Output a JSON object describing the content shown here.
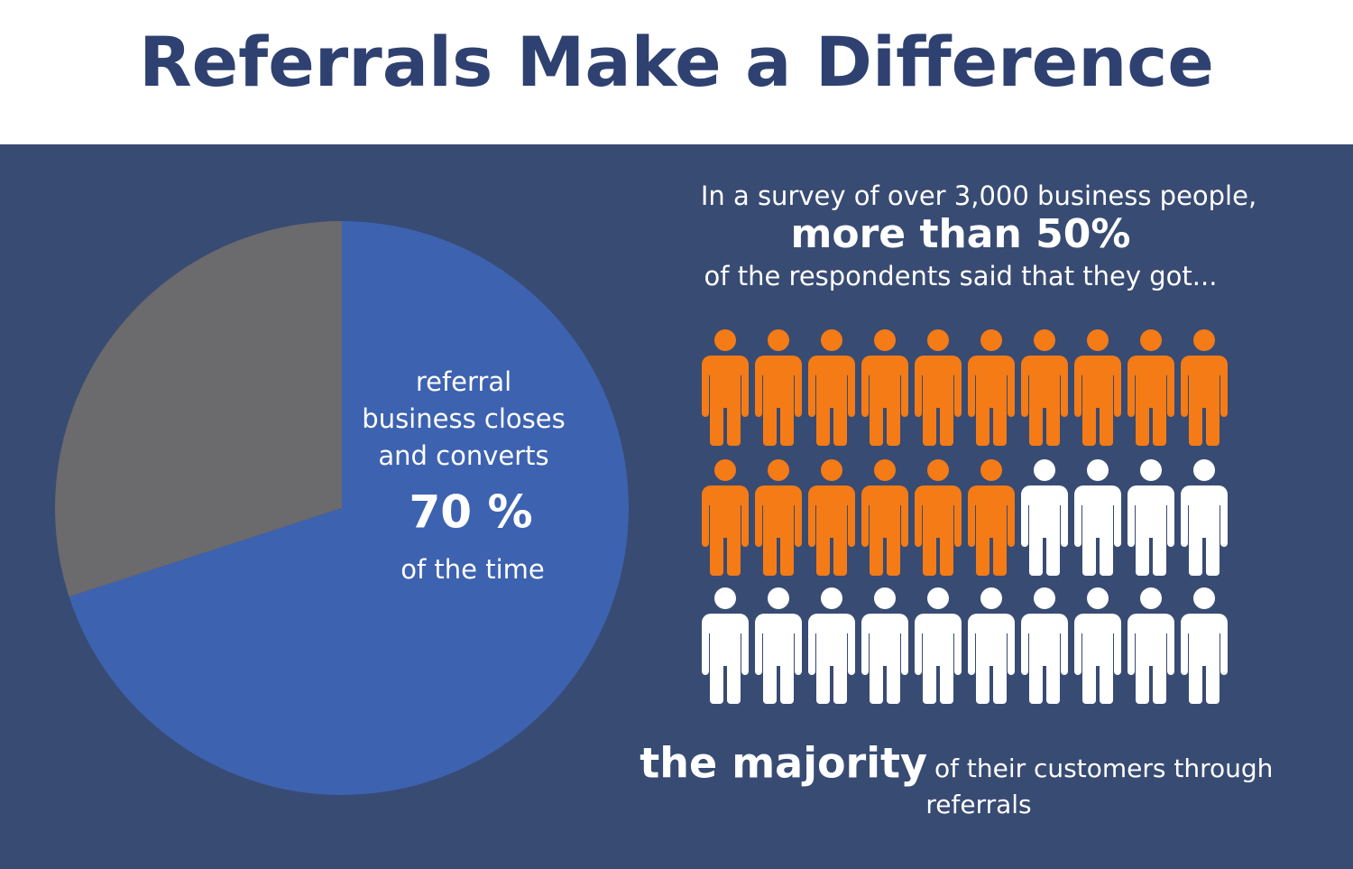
{
  "title": "Referrals Make a Difference",
  "pie": {
    "type": "pie",
    "values": [
      70,
      30
    ],
    "colors": [
      "#3d62b0",
      "#6b6a6c"
    ],
    "text_lines": [
      "referral",
      "business closes",
      "and converts"
    ],
    "value_label": "70 %",
    "footer": "of the time"
  },
  "survey": {
    "line1": "In a survey of over 3,000 business people,",
    "highlight": "more than 50%",
    "line2": "of the respondents said that they got..."
  },
  "people": {
    "total": 30,
    "highlighted": 16,
    "highlight_color": "#f47b16",
    "base_color": "#ffffff"
  },
  "conclusion": {
    "emphasis": "the majority",
    "rest": "of their customers through",
    "rest2": "referrals"
  }
}
